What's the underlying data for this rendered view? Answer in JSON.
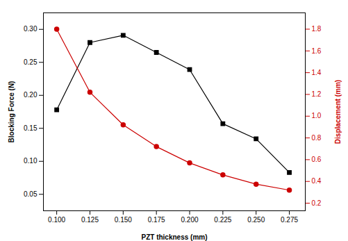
{
  "chart_data": {
    "type": "line",
    "xlabel": "PZT thickness (mm)",
    "ylabel": "Blocking Force (N)",
    "y2label": "Displacement (mm)",
    "x": [
      0.1,
      0.125,
      0.15,
      0.175,
      0.2,
      0.225,
      0.25,
      0.275
    ],
    "series": [
      {
        "color": "#000000",
        "marker": "square",
        "values": [
          0.178,
          0.28,
          0.291,
          0.265,
          0.239,
          0.157,
          0.134,
          0.083
        ]
      },
      {
        "color": "#cc0000",
        "marker": "circle",
        "axis": "y2",
        "values": [
          1.8,
          1.22,
          0.92,
          0.72,
          0.57,
          0.46,
          0.375,
          0.32
        ]
      }
    ],
    "xlim": [
      0.09,
      0.287
    ],
    "xticks": [
      {
        "value": 0.1,
        "label": "0.100"
      },
      {
        "value": 0.125,
        "label": "0.125"
      },
      {
        "value": 0.15,
        "label": "0.150"
      },
      {
        "value": 0.175,
        "label": "0.175"
      },
      {
        "value": 0.2,
        "label": "0.200"
      },
      {
        "value": 0.225,
        "label": "0.225"
      },
      {
        "value": 0.25,
        "label": "0.250"
      },
      {
        "value": 0.275,
        "label": "0.275"
      }
    ],
    "ylim": [
      0.025,
      0.325
    ],
    "yticks": [
      0.05,
      {
        "value": 0.1,
        "label": "0.10"
      },
      0.15,
      {
        "value": 0.2,
        "label": "0.20"
      },
      0.25,
      {
        "value": 0.3,
        "label": "0.30"
      }
    ],
    "y2lim": [
      0.13,
      1.95
    ],
    "y2ticks": [
      0.2,
      0.4,
      0.6,
      0.8,
      {
        "value": 1.0,
        "label": "1.0"
      },
      1.2,
      1.4,
      1.6,
      1.8
    ],
    "grid": false
  }
}
